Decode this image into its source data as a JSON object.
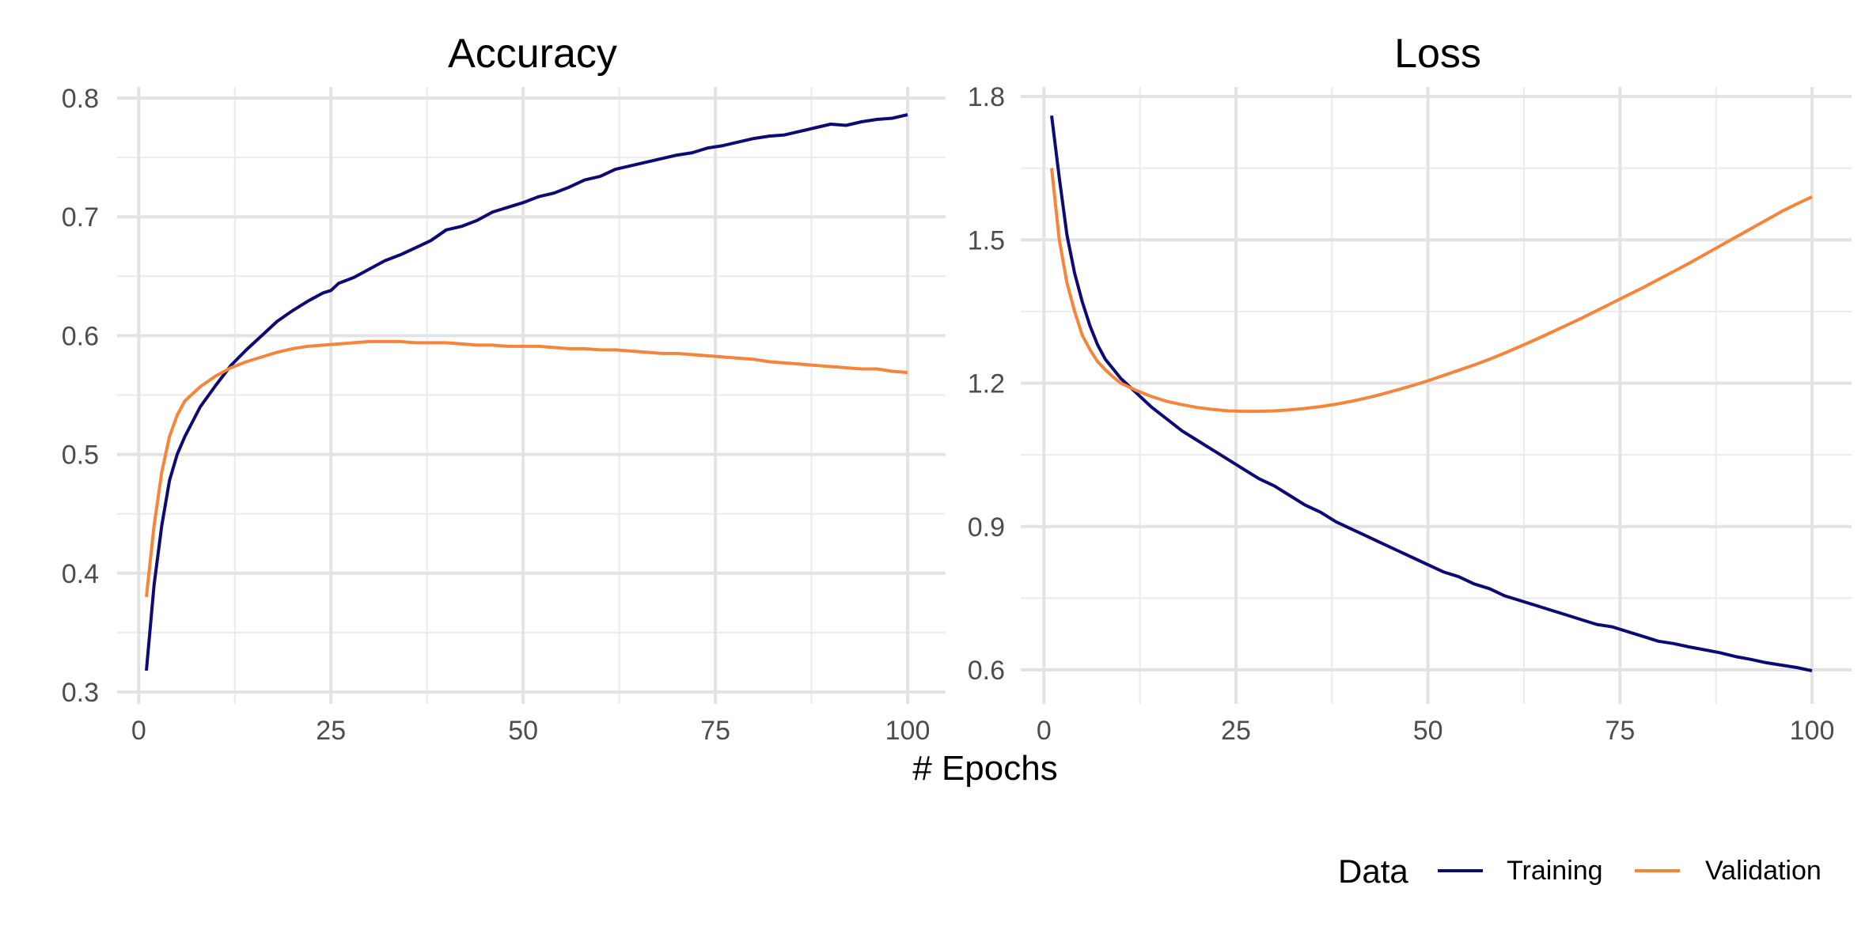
{
  "figure": {
    "xlabel": "# Epochs",
    "legend": {
      "title": "Data",
      "position": "bottom-right",
      "items": [
        {
          "label": "Training",
          "color": "#0d0a74"
        },
        {
          "label": "Validation",
          "color": "#f5853a"
        }
      ]
    }
  },
  "chart_data": [
    {
      "type": "line",
      "title": "Accuracy",
      "xlabel": "# Epochs",
      "ylabel": "",
      "xlim": [
        1,
        100
      ],
      "ylim": [
        0.3,
        0.8
      ],
      "x_ticks": [
        0,
        25,
        50,
        75,
        100
      ],
      "y_ticks": [
        0.3,
        0.4,
        0.5,
        0.6,
        0.7,
        0.8
      ],
      "x_tick_labels": [
        "0",
        "25",
        "50",
        "75",
        "100"
      ],
      "y_tick_labels": [
        "0.3",
        "0.4",
        "0.5",
        "0.6",
        "0.7",
        "0.8"
      ],
      "grid": true,
      "series": [
        {
          "name": "Training",
          "color": "#0d0a74",
          "x": [
            1,
            2,
            3,
            4,
            5,
            6,
            8,
            10,
            12,
            14,
            16,
            18,
            20,
            22,
            24,
            25,
            26,
            28,
            30,
            32,
            34,
            36,
            38,
            40,
            42,
            44,
            46,
            48,
            50,
            52,
            54,
            56,
            58,
            60,
            62,
            64,
            66,
            68,
            70,
            72,
            74,
            76,
            78,
            80,
            82,
            84,
            86,
            88,
            90,
            92,
            94,
            96,
            98,
            100
          ],
          "y": [
            0.318,
            0.39,
            0.44,
            0.478,
            0.5,
            0.515,
            0.54,
            0.558,
            0.575,
            0.588,
            0.6,
            0.612,
            0.621,
            0.629,
            0.636,
            0.638,
            0.644,
            0.649,
            0.656,
            0.663,
            0.668,
            0.674,
            0.68,
            0.689,
            0.692,
            0.697,
            0.704,
            0.708,
            0.712,
            0.717,
            0.72,
            0.725,
            0.731,
            0.734,
            0.74,
            0.743,
            0.746,
            0.749,
            0.752,
            0.754,
            0.758,
            0.76,
            0.763,
            0.766,
            0.768,
            0.769,
            0.772,
            0.775,
            0.778,
            0.777,
            0.78,
            0.782,
            0.783,
            0.786
          ]
        },
        {
          "name": "Validation",
          "color": "#f5853a",
          "x": [
            1,
            2,
            3,
            4,
            5,
            6,
            8,
            10,
            12,
            14,
            16,
            18,
            20,
            22,
            24,
            26,
            28,
            30,
            32,
            34,
            36,
            38,
            40,
            42,
            44,
            46,
            48,
            50,
            52,
            54,
            56,
            58,
            60,
            62,
            64,
            66,
            68,
            70,
            72,
            74,
            76,
            78,
            80,
            82,
            84,
            86,
            88,
            90,
            92,
            94,
            96,
            98,
            100
          ],
          "y": [
            0.38,
            0.44,
            0.485,
            0.515,
            0.533,
            0.545,
            0.557,
            0.566,
            0.573,
            0.578,
            0.582,
            0.586,
            0.589,
            0.591,
            0.592,
            0.593,
            0.594,
            0.595,
            0.595,
            0.595,
            0.594,
            0.594,
            0.594,
            0.593,
            0.592,
            0.592,
            0.591,
            0.591,
            0.591,
            0.59,
            0.589,
            0.589,
            0.588,
            0.588,
            0.587,
            0.586,
            0.585,
            0.585,
            0.584,
            0.583,
            0.582,
            0.581,
            0.58,
            0.578,
            0.577,
            0.576,
            0.575,
            0.574,
            0.573,
            0.572,
            0.572,
            0.57,
            0.569
          ]
        }
      ]
    },
    {
      "type": "line",
      "title": "Loss",
      "xlabel": "# Epochs",
      "ylabel": "",
      "xlim": [
        1,
        100
      ],
      "ylim": [
        0.6,
        1.8
      ],
      "x_ticks": [
        0,
        25,
        50,
        75,
        100
      ],
      "y_ticks": [
        0.6,
        0.9,
        1.2,
        1.5,
        1.8
      ],
      "x_tick_labels": [
        "0",
        "25",
        "50",
        "75",
        "100"
      ],
      "y_tick_labels": [
        "0.6",
        "0.9",
        "1.2",
        "1.5",
        "1.8"
      ],
      "grid": true,
      "series": [
        {
          "name": "Training",
          "color": "#0d0a74",
          "x": [
            1,
            2,
            3,
            4,
            5,
            6,
            7,
            8,
            9,
            10,
            12,
            14,
            16,
            18,
            20,
            22,
            24,
            26,
            28,
            30,
            32,
            34,
            36,
            38,
            40,
            42,
            44,
            46,
            48,
            50,
            52,
            54,
            56,
            58,
            60,
            62,
            64,
            66,
            68,
            70,
            72,
            74,
            76,
            78,
            80,
            82,
            84,
            86,
            88,
            90,
            92,
            94,
            96,
            98,
            100
          ],
          "y": [
            1.76,
            1.63,
            1.51,
            1.43,
            1.37,
            1.32,
            1.28,
            1.25,
            1.23,
            1.21,
            1.18,
            1.15,
            1.125,
            1.1,
            1.08,
            1.06,
            1.04,
            1.02,
            1.0,
            0.985,
            0.965,
            0.945,
            0.93,
            0.91,
            0.895,
            0.88,
            0.865,
            0.85,
            0.835,
            0.82,
            0.805,
            0.795,
            0.78,
            0.77,
            0.755,
            0.745,
            0.735,
            0.725,
            0.715,
            0.705,
            0.695,
            0.69,
            0.68,
            0.67,
            0.66,
            0.655,
            0.648,
            0.642,
            0.636,
            0.628,
            0.622,
            0.615,
            0.61,
            0.605,
            0.598
          ]
        },
        {
          "name": "Validation",
          "color": "#f5853a",
          "x": [
            1,
            2,
            3,
            4,
            5,
            6,
            7,
            8,
            9,
            10,
            12,
            14,
            16,
            18,
            20,
            22,
            24,
            26,
            28,
            30,
            32,
            34,
            36,
            38,
            40,
            42,
            44,
            46,
            48,
            50,
            52,
            54,
            56,
            58,
            60,
            62,
            64,
            66,
            68,
            70,
            72,
            74,
            76,
            78,
            80,
            82,
            84,
            86,
            88,
            90,
            92,
            94,
            96,
            98,
            100
          ],
          "y": [
            1.65,
            1.5,
            1.41,
            1.35,
            1.3,
            1.27,
            1.245,
            1.228,
            1.213,
            1.2,
            1.185,
            1.172,
            1.162,
            1.155,
            1.149,
            1.145,
            1.142,
            1.141,
            1.141,
            1.142,
            1.144,
            1.147,
            1.151,
            1.156,
            1.162,
            1.169,
            1.177,
            1.186,
            1.195,
            1.205,
            1.216,
            1.227,
            1.238,
            1.25,
            1.263,
            1.277,
            1.291,
            1.306,
            1.321,
            1.336,
            1.352,
            1.368,
            1.384,
            1.4,
            1.417,
            1.434,
            1.451,
            1.469,
            1.487,
            1.505,
            1.523,
            1.541,
            1.559,
            1.575,
            1.59
          ]
        }
      ]
    }
  ]
}
